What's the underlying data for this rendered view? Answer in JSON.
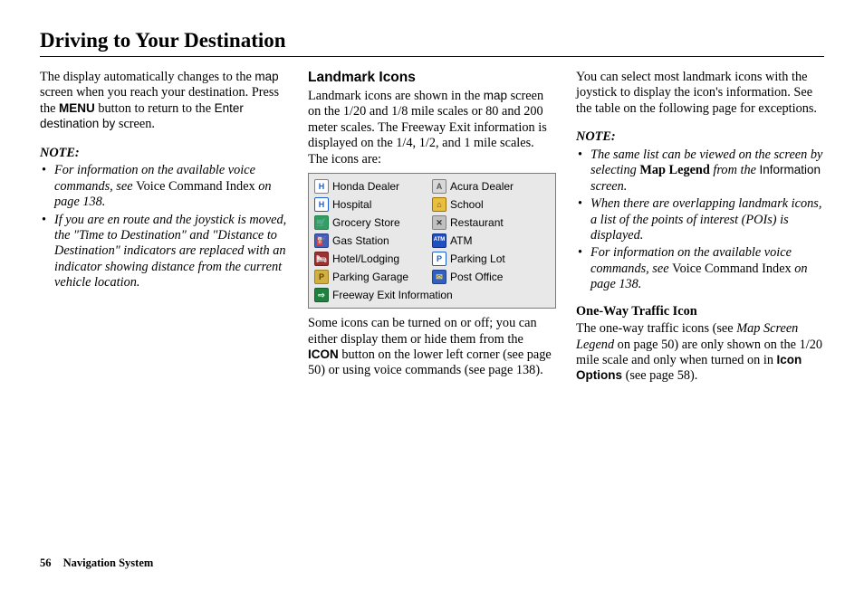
{
  "title": "Driving to Your Destination",
  "footer": {
    "page": "56",
    "section": "Navigation System"
  },
  "col1": {
    "p1a": "The display automatically changes to the ",
    "p1_map": "map",
    "p1b": " screen when you reach your destination. Press the ",
    "p1_menu": "MENU",
    "p1c": " button to return to the ",
    "p1_enter": "Enter destination by",
    "p1d": " screen.",
    "note_head": "NOTE:",
    "note1a": "For information on the available voice commands, see ",
    "note1b": "Voice Command Index",
    "note1c": " on page 138.",
    "note2": "If you are en route and the joystick is moved, the \"Time to Destination\" and \"Distance to Destination\" indicators are replaced with an indicator showing distance from the current vehicle location."
  },
  "col2": {
    "head": "Landmark Icons",
    "p1a": "Landmark icons are shown in the ",
    "p1_map": "map",
    "p1b": " screen on the 1/20 and 1/8 mile scales or 80 and 200 meter scales. The Freeway Exit information is displayed on the 1/4, 1/2, and 1 mile scales. The icons are:",
    "icons": [
      {
        "left": {
          "name": "honda-dealer-icon",
          "label": "Honda Dealer",
          "bg": "#ffffff",
          "fg": "#1a5fd0",
          "glyph": "H",
          "border": "#808080"
        },
        "right": {
          "name": "acura-dealer-icon",
          "label": "Acura Dealer",
          "bg": "#d8d8d8",
          "fg": "#555555",
          "glyph": "A",
          "border": "#808080"
        }
      },
      {
        "left": {
          "name": "hospital-icon",
          "label": "Hospital",
          "bg": "#ffffff",
          "fg": "#1a5fd0",
          "glyph": "H",
          "border": "#1a5fd0"
        },
        "right": {
          "name": "school-icon",
          "label": "School",
          "bg": "#e8c040",
          "fg": "#803000",
          "glyph": "⌂",
          "border": "#a07000"
        }
      },
      {
        "left": {
          "name": "grocery-icon",
          "label": "Grocery Store",
          "bg": "#30a060",
          "fg": "#ffffff",
          "glyph": "🛒",
          "border": "#208050"
        },
        "right": {
          "name": "restaurant-icon",
          "label": "Restaurant",
          "bg": "#c0c0c0",
          "fg": "#333333",
          "glyph": "✕",
          "border": "#808080"
        }
      },
      {
        "left": {
          "name": "gas-icon",
          "label": "Gas Station",
          "bg": "#4060c0",
          "fg": "#ffffff",
          "glyph": "⛽",
          "border": "#304090"
        },
        "right": {
          "name": "atm-icon",
          "label": "ATM",
          "bg": "#2050c0",
          "fg": "#ffffff",
          "glyph": "ATM",
          "border": "#103090",
          "fs": "6px"
        }
      },
      {
        "left": {
          "name": "hotel-icon",
          "label": "Hotel/Lodging",
          "bg": "#a03030",
          "fg": "#ffffff",
          "glyph": "🛏",
          "border": "#702020"
        },
        "right": {
          "name": "parking-lot-icon",
          "label": "Parking Lot",
          "bg": "#ffffff",
          "fg": "#1a5fd0",
          "glyph": "P",
          "border": "#1a5fd0"
        }
      },
      {
        "left": {
          "name": "parking-garage-icon",
          "label": "Parking Garage",
          "bg": "#d0b040",
          "fg": "#604000",
          "glyph": "P",
          "border": "#a08020"
        },
        "right": {
          "name": "post-office-icon",
          "label": "Post Office",
          "bg": "#3060c0",
          "fg": "#ffd040",
          "glyph": "✉",
          "border": "#204090"
        }
      },
      {
        "full": {
          "name": "freeway-exit-icon",
          "label": "Freeway Exit Information",
          "bg": "#208040",
          "fg": "#ffffff",
          "glyph": "⇨",
          "border": "#106030"
        }
      }
    ],
    "p2a": "Some icons can be turned on or off; you can either display them or hide them from the ",
    "p2_icon": "ICON",
    "p2b": " button on the lower left corner (see page 50) or using voice commands (see page 138)."
  },
  "col3": {
    "p1": "You can select most landmark icons with the joystick to display the icon's information. See the table on the following page for exceptions.",
    "note_head": "NOTE:",
    "n1a": "The same list can be viewed on the screen by selecting ",
    "n1b": "Map Legend",
    "n1c": " from the ",
    "n1d": "Information",
    "n1e": " screen.",
    "n2": "When there are overlapping landmark icons, a list of the points of interest (POIs) is displayed.",
    "n3a": "For information on the available voice commands, see ",
    "n3b": "Voice Command Index",
    "n3c": " on page 138.",
    "sub": "One-Way Traffic Icon",
    "p2a": "The one-way traffic icons (see ",
    "p2b": "Map Screen Legend",
    "p2c": " on page 50) are only shown on the 1/20 mile scale and only when turned on in ",
    "p2d": "Icon Options",
    "p2e": " (see page 58)."
  }
}
